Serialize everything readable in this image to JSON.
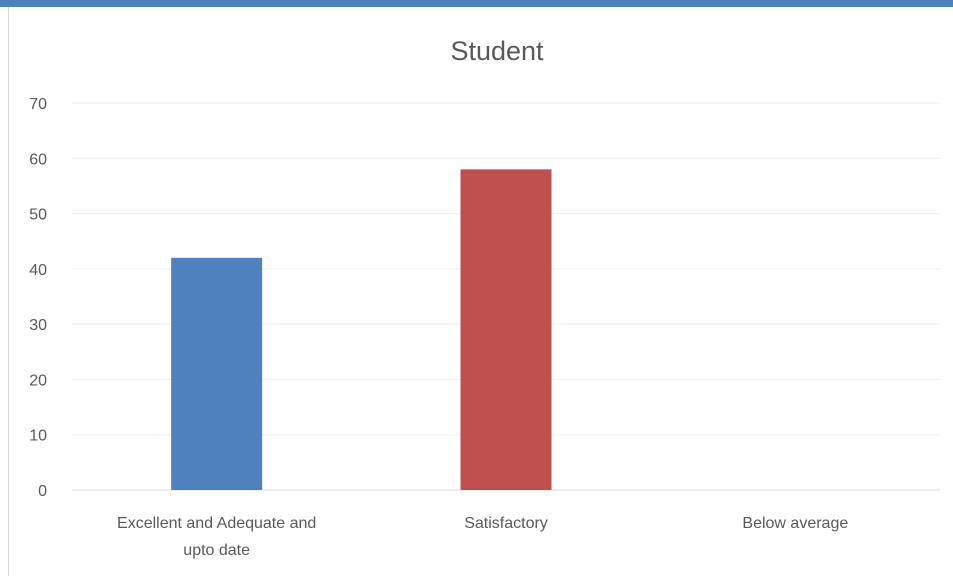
{
  "chart_data": {
    "type": "bar",
    "title": "Student",
    "categories": [
      "Excellent and Adequate and upto date",
      "Satisfactory",
      "Below average"
    ],
    "category_lines": [
      [
        "Excellent and Adequate and",
        "upto date"
      ],
      [
        "Satisfactory"
      ],
      [
        "Below average"
      ]
    ],
    "values": [
      42,
      58,
      0
    ],
    "colors": [
      "#4f81bd",
      "#c0504d",
      "#9bbb59"
    ],
    "ylim": [
      0,
      70
    ],
    "yticks": [
      0,
      10,
      20,
      30,
      40,
      50,
      60,
      70
    ],
    "grid": true,
    "legend": "none",
    "xlabel": "",
    "ylabel": ""
  }
}
